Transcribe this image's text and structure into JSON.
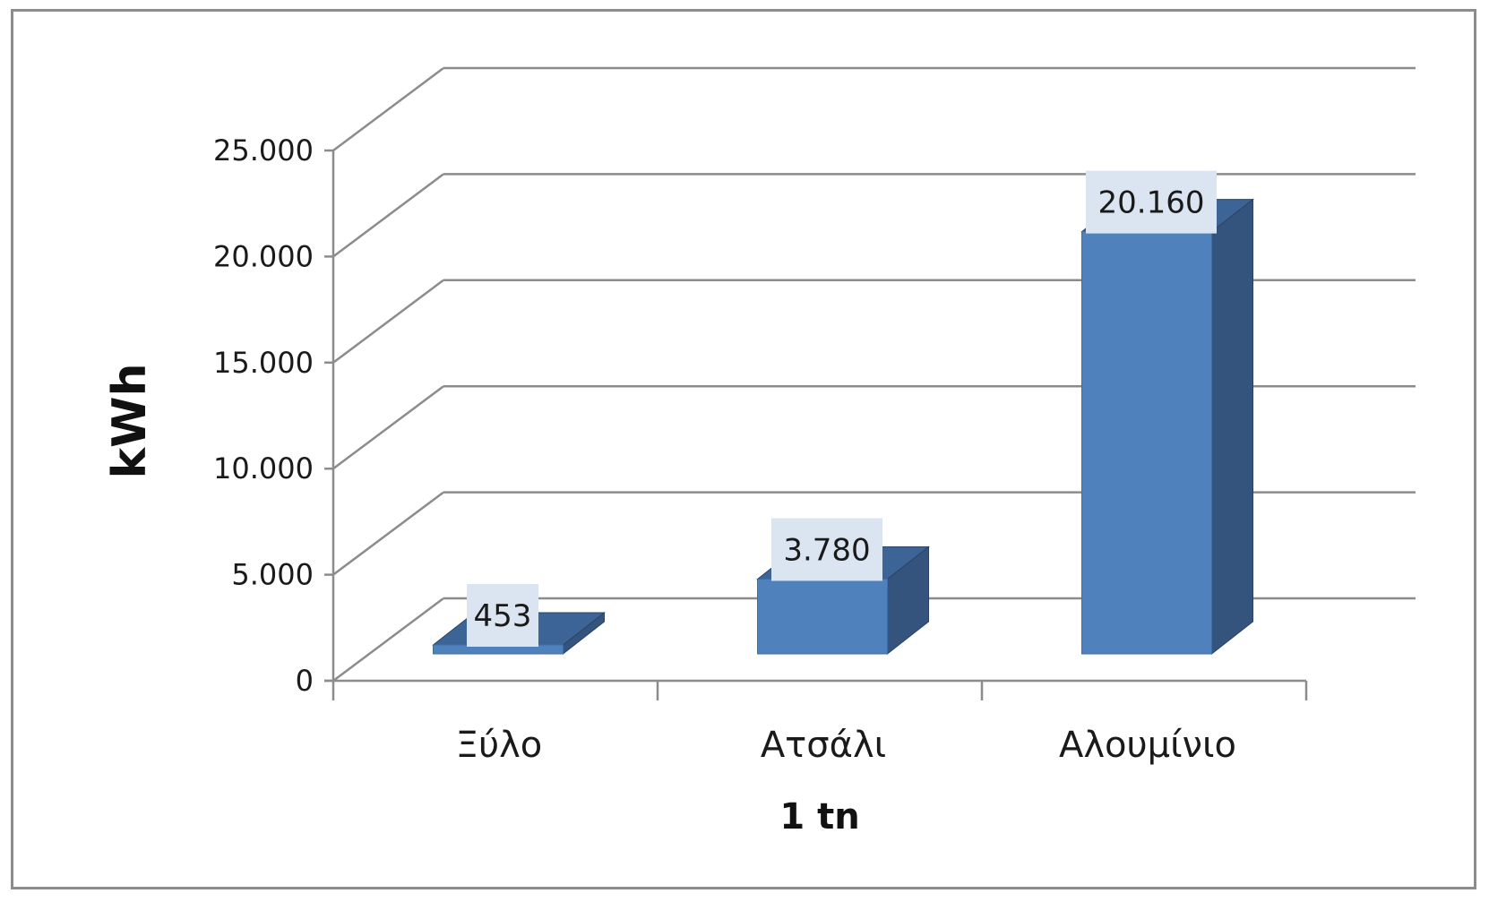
{
  "chart_data": {
    "type": "bar",
    "style": "3d-column",
    "categories": [
      "Ξύλο",
      "Ατσάλι",
      "Αλουμίνιο"
    ],
    "series": [
      {
        "values": [
          453,
          3780,
          20160
        ]
      }
    ],
    "data_labels": [
      "453",
      "3.780",
      "20.160"
    ],
    "xlabel": "1 tn",
    "ylabel": "kWh",
    "ylim": [
      0,
      25000
    ],
    "y_ticks": [
      0,
      5000,
      10000,
      15000,
      20000,
      25000
    ],
    "y_tick_labels": [
      "0",
      "5.000",
      "10.000",
      "15.000",
      "20.000",
      "25.000"
    ],
    "grid": true,
    "legend": "none",
    "colors": {
      "bar_front": "#4f81bd",
      "bar_side": "#34547d",
      "bar_top": "#3c6496",
      "label_box": "#dbe5f1",
      "gridline": "#8c8c8c",
      "frame": "#8c8c8c"
    }
  }
}
